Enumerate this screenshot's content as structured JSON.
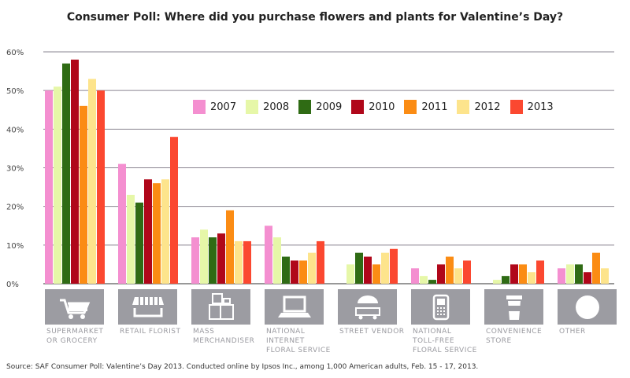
{
  "chart_data": {
    "type": "bar",
    "title": "Consumer Poll: Where did you purchase flowers and plants for Valentine’s Day?",
    "xlabel": "",
    "ylabel": "",
    "ylim": [
      0,
      60
    ],
    "yticks": [
      "0%",
      "10%",
      "20%",
      "30%",
      "40%",
      "50%",
      "60%"
    ],
    "grid": true,
    "legend_position": "top-center",
    "categories": [
      "SUPERMARKET\nOR GROCERY",
      "RETAIL FLORIST",
      "MASS\nMERCHANDISER",
      "NATIONAL\nINTERNET\nFLORAL SERVICE",
      "STREET VENDOR",
      "NATIONAL\nTOLL-FREE\nFLORAL SERVICE",
      "CONVENIENCE\nSTORE",
      "OTHER"
    ],
    "category_icons": [
      "shopping-cart-icon",
      "storefront-icon",
      "boxes-icon",
      "laptop-icon",
      "vendor-cart-icon",
      "phone-icon",
      "cup-icon",
      "circle-icon"
    ],
    "series": [
      {
        "name": "2007",
        "color": "#f48fd0",
        "values": [
          50,
          31,
          12,
          15,
          0,
          4,
          0,
          4
        ]
      },
      {
        "name": "2008",
        "color": "#e6f7a8",
        "values": [
          51,
          23,
          14,
          12,
          5,
          2,
          1,
          5
        ]
      },
      {
        "name": "2009",
        "color": "#2f6b14",
        "values": [
          57,
          21,
          12,
          7,
          8,
          1,
          2,
          5
        ]
      },
      {
        "name": "2010",
        "color": "#b0071a",
        "values": [
          58,
          27,
          13,
          6,
          7,
          5,
          5,
          3
        ]
      },
      {
        "name": "2011",
        "color": "#fb8c14",
        "values": [
          46,
          26,
          19,
          6,
          5,
          7,
          5,
          8
        ]
      },
      {
        "name": "2012",
        "color": "#fde48c",
        "values": [
          53,
          27,
          11,
          8,
          8,
          4,
          3,
          4
        ]
      },
      {
        "name": "2013",
        "color": "#fb4830",
        "values": [
          50,
          38,
          11,
          11,
          9,
          6,
          6,
          0
        ]
      }
    ]
  },
  "source": "Source: SAF Consumer Poll: Valentine’s Day 2013. Conducted online by Ipsos Inc., among 1,000 American adults, Feb. 15 - 17, 2013."
}
